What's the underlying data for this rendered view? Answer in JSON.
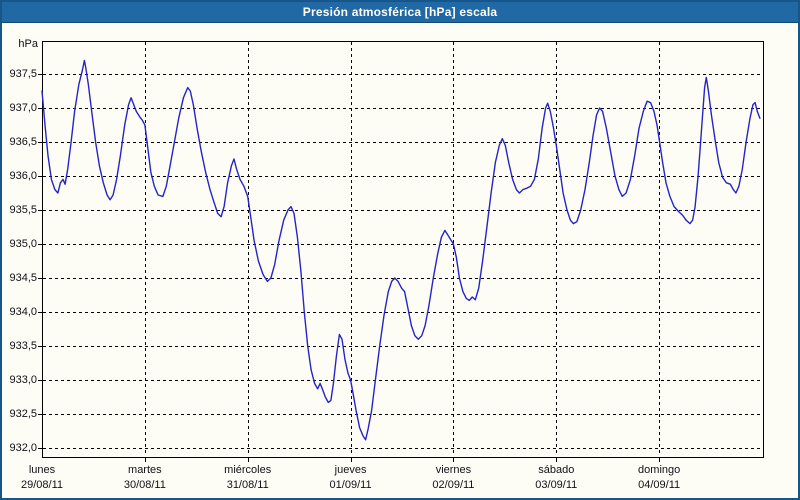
{
  "window": {
    "title": "Presión atmosférica [hPa] escala"
  },
  "chart_data": {
    "type": "line",
    "title": "Presión atmosférica [hPa] escala",
    "grid": true,
    "legend": "none",
    "line_color": "#2424c8",
    "background_color": "#fdfdf5",
    "titlebar_color": "#2069a5",
    "y_axis": {
      "unit_label": "hPa",
      "tick_labels": [
        "937,5",
        "937,0",
        "936,5",
        "936,0",
        "935,5",
        "935,0",
        "934,5",
        "934,0",
        "933,5",
        "933,0",
        "932,5",
        "932,0"
      ],
      "tick_values": [
        937.5,
        937.0,
        936.5,
        936.0,
        935.5,
        935.0,
        934.5,
        934.0,
        933.5,
        933.0,
        932.5,
        932.0
      ],
      "range_shown": [
        931.9,
        938.0
      ]
    },
    "x_axis": {
      "days": [
        {
          "name": "lunes",
          "date": "29/08/11"
        },
        {
          "name": "martes",
          "date": "30/08/11"
        },
        {
          "name": "miércoles",
          "date": "31/08/11"
        },
        {
          "name": "jueves",
          "date": "01/09/11"
        },
        {
          "name": "viernes",
          "date": "02/09/11"
        },
        {
          "name": "sábado",
          "date": "03/09/11"
        },
        {
          "name": "domingo",
          "date": "04/09/11"
        }
      ],
      "hours_per_day": 24
    },
    "series": [
      {
        "name": "Presión atmosférica",
        "unit": "hPa",
        "points": [
          [
            0,
            937.25
          ],
          [
            0.7,
            936.75
          ],
          [
            1.4,
            936.3
          ],
          [
            2.2,
            935.95
          ],
          [
            3.0,
            935.8
          ],
          [
            3.7,
            935.75
          ],
          [
            4.3,
            935.9
          ],
          [
            4.9,
            935.95
          ],
          [
            5.4,
            935.88
          ],
          [
            6.0,
            936.1
          ],
          [
            6.8,
            936.5
          ],
          [
            7.6,
            936.95
          ],
          [
            8.6,
            937.35
          ],
          [
            9.4,
            937.55
          ],
          [
            9.9,
            937.7
          ],
          [
            10.2,
            937.6
          ],
          [
            10.8,
            937.35
          ],
          [
            11.6,
            936.95
          ],
          [
            12.5,
            936.5
          ],
          [
            13.4,
            936.15
          ],
          [
            14.3,
            935.9
          ],
          [
            15.2,
            935.72
          ],
          [
            15.9,
            935.65
          ],
          [
            16.6,
            935.72
          ],
          [
            17.4,
            935.95
          ],
          [
            18.3,
            936.3
          ],
          [
            19.3,
            936.75
          ],
          [
            20.2,
            937.05
          ],
          [
            20.8,
            937.15
          ],
          [
            21.4,
            937.05
          ],
          [
            22.0,
            936.95
          ],
          [
            22.8,
            936.87
          ],
          [
            23.4,
            936.82
          ],
          [
            24,
            936.75
          ],
          [
            24.7,
            936.4
          ],
          [
            25.4,
            936.05
          ],
          [
            26.2,
            935.85
          ],
          [
            27.1,
            935.72
          ],
          [
            28.2,
            935.7
          ],
          [
            29.0,
            935.85
          ],
          [
            29.9,
            936.15
          ],
          [
            30.9,
            936.5
          ],
          [
            31.9,
            936.85
          ],
          [
            33.0,
            937.15
          ],
          [
            34.0,
            937.3
          ],
          [
            34.6,
            937.25
          ],
          [
            35.3,
            937.05
          ],
          [
            36.2,
            936.7
          ],
          [
            37.2,
            936.35
          ],
          [
            38.2,
            936.05
          ],
          [
            39.2,
            935.8
          ],
          [
            40.2,
            935.6
          ],
          [
            41.0,
            935.45
          ],
          [
            41.8,
            935.4
          ],
          [
            42.5,
            935.55
          ],
          [
            43.3,
            935.9
          ],
          [
            44.2,
            936.15
          ],
          [
            44.8,
            936.25
          ],
          [
            45.4,
            936.1
          ],
          [
            46.2,
            935.95
          ],
          [
            47.1,
            935.85
          ],
          [
            48,
            935.7
          ],
          [
            48.7,
            935.4
          ],
          [
            49.5,
            935.05
          ],
          [
            50.5,
            934.75
          ],
          [
            51.6,
            934.55
          ],
          [
            52.6,
            934.45
          ],
          [
            53.4,
            934.5
          ],
          [
            54.3,
            934.7
          ],
          [
            55.3,
            935.05
          ],
          [
            56.4,
            935.35
          ],
          [
            57.4,
            935.5
          ],
          [
            58.1,
            935.55
          ],
          [
            58.8,
            935.45
          ],
          [
            59.6,
            935.1
          ],
          [
            60.4,
            934.6
          ],
          [
            61.2,
            934.0
          ],
          [
            62.0,
            933.5
          ],
          [
            62.8,
            933.15
          ],
          [
            63.6,
            932.95
          ],
          [
            64.3,
            932.87
          ],
          [
            64.9,
            932.95
          ],
          [
            65.4,
            932.87
          ],
          [
            66.1,
            932.75
          ],
          [
            66.8,
            932.67
          ],
          [
            67.4,
            932.7
          ],
          [
            68.0,
            932.95
          ],
          [
            68.7,
            933.35
          ],
          [
            69.4,
            933.67
          ],
          [
            70.0,
            933.6
          ],
          [
            70.7,
            933.3
          ],
          [
            71.4,
            933.1
          ],
          [
            72,
            933.0
          ],
          [
            72.6,
            932.8
          ],
          [
            73.3,
            932.55
          ],
          [
            74.1,
            932.3
          ],
          [
            74.9,
            932.18
          ],
          [
            75.5,
            932.12
          ],
          [
            76.1,
            932.28
          ],
          [
            76.9,
            932.55
          ],
          [
            77.8,
            933.0
          ],
          [
            78.8,
            933.5
          ],
          [
            79.8,
            933.95
          ],
          [
            80.8,
            934.3
          ],
          [
            81.6,
            934.45
          ],
          [
            82.3,
            934.5
          ],
          [
            83.1,
            934.45
          ],
          [
            83.9,
            934.35
          ],
          [
            84.6,
            934.3
          ],
          [
            85.4,
            934.05
          ],
          [
            86.2,
            933.8
          ],
          [
            87.0,
            933.65
          ],
          [
            87.8,
            933.6
          ],
          [
            88.6,
            933.65
          ],
          [
            89.4,
            933.8
          ],
          [
            90.3,
            934.1
          ],
          [
            91.3,
            934.5
          ],
          [
            92.3,
            934.85
          ],
          [
            93.2,
            935.1
          ],
          [
            94.0,
            935.2
          ],
          [
            94.8,
            935.12
          ],
          [
            95.5,
            935.05
          ],
          [
            96,
            935.0
          ],
          [
            96.7,
            934.8
          ],
          [
            97.4,
            934.5
          ],
          [
            98.2,
            934.3
          ],
          [
            99.0,
            934.2
          ],
          [
            99.7,
            934.17
          ],
          [
            100.4,
            934.22
          ],
          [
            101.1,
            934.18
          ],
          [
            101.9,
            934.35
          ],
          [
            102.8,
            934.75
          ],
          [
            103.8,
            935.25
          ],
          [
            104.8,
            935.75
          ],
          [
            105.8,
            936.2
          ],
          [
            106.7,
            936.45
          ],
          [
            107.4,
            936.55
          ],
          [
            108.1,
            936.45
          ],
          [
            108.9,
            936.2
          ],
          [
            109.8,
            935.95
          ],
          [
            110.7,
            935.8
          ],
          [
            111.4,
            935.75
          ],
          [
            112.2,
            935.8
          ],
          [
            113.1,
            935.82
          ],
          [
            114.0,
            935.85
          ],
          [
            114.9,
            935.95
          ],
          [
            115.8,
            936.25
          ],
          [
            116.7,
            936.7
          ],
          [
            117.5,
            937.0
          ],
          [
            118.0,
            937.07
          ],
          [
            118.6,
            936.95
          ],
          [
            119.3,
            936.72
          ],
          [
            120,
            936.45
          ],
          [
            120.8,
            936.1
          ],
          [
            121.6,
            935.75
          ],
          [
            122.5,
            935.5
          ],
          [
            123.3,
            935.35
          ],
          [
            124.0,
            935.3
          ],
          [
            124.8,
            935.33
          ],
          [
            125.7,
            935.5
          ],
          [
            126.7,
            935.8
          ],
          [
            127.7,
            936.2
          ],
          [
            128.6,
            936.6
          ],
          [
            129.4,
            936.9
          ],
          [
            130.1,
            937.0
          ],
          [
            130.8,
            936.95
          ],
          [
            131.7,
            936.7
          ],
          [
            132.7,
            936.35
          ],
          [
            133.7,
            936.0
          ],
          [
            134.6,
            935.8
          ],
          [
            135.4,
            935.7
          ],
          [
            136.3,
            935.75
          ],
          [
            137.3,
            935.95
          ],
          [
            138.3,
            936.3
          ],
          [
            139.3,
            936.7
          ],
          [
            140.3,
            936.95
          ],
          [
            141.2,
            937.1
          ],
          [
            142.0,
            937.08
          ],
          [
            142.8,
            936.95
          ],
          [
            143.5,
            936.75
          ],
          [
            144,
            936.55
          ],
          [
            144.8,
            936.2
          ],
          [
            145.6,
            935.9
          ],
          [
            146.5,
            935.7
          ],
          [
            147.5,
            935.55
          ],
          [
            148.5,
            935.48
          ],
          [
            149.5,
            935.42
          ],
          [
            150.3,
            935.35
          ],
          [
            151.2,
            935.3
          ],
          [
            151.8,
            935.35
          ],
          [
            152.4,
            935.55
          ],
          [
            153.1,
            936.0
          ],
          [
            153.9,
            936.7
          ],
          [
            154.6,
            937.3
          ],
          [
            155.0,
            937.45
          ],
          [
            155.5,
            937.25
          ],
          [
            156.2,
            936.9
          ],
          [
            157.0,
            936.55
          ],
          [
            157.9,
            936.2
          ],
          [
            158.8,
            935.98
          ],
          [
            159.7,
            935.9
          ],
          [
            160.6,
            935.88
          ],
          [
            161.3,
            935.8
          ],
          [
            161.9,
            935.75
          ],
          [
            162.6,
            935.85
          ],
          [
            163.4,
            936.1
          ],
          [
            164.3,
            936.5
          ],
          [
            165.2,
            936.85
          ],
          [
            165.9,
            937.05
          ],
          [
            166.4,
            937.08
          ],
          [
            166.9,
            936.95
          ],
          [
            167.5,
            936.85
          ]
        ]
      }
    ]
  }
}
